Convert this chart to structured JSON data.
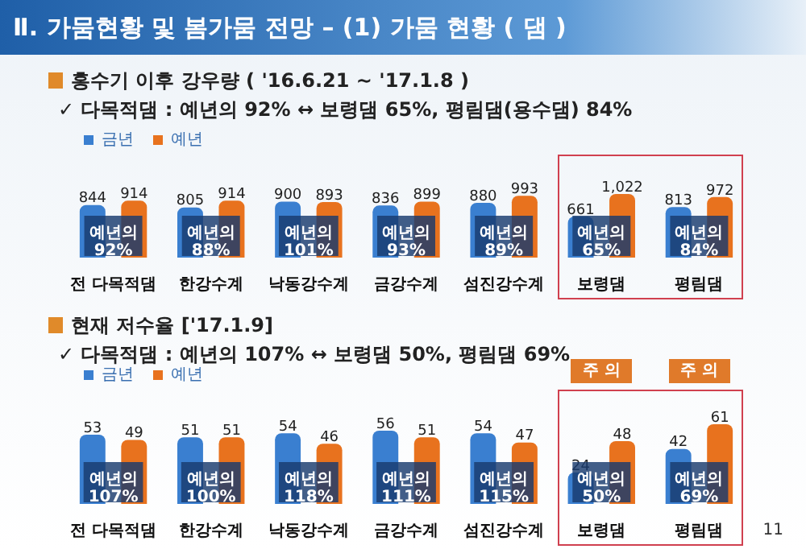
{
  "chart_data": [
    {
      "type": "bar",
      "title": "홍수기 이후 강우량 ( '16.6.21 ~ '17.1.8 )",
      "subtitle": "✓ 다목적댐 : 예년의 92% ↔ 보령댐 65%, 평림댐(용수댐) 84%",
      "categories": [
        "전 다목적댐",
        "한강수계",
        "낙동강수계",
        "금강수계",
        "섬진강수계",
        "보령댐",
        "평림댐"
      ],
      "series": [
        {
          "name": "금년",
          "color": "#3a7fd0",
          "values": [
            844,
            805,
            900,
            836,
            880,
            661,
            813
          ],
          "value_labels": [
            "844",
            "805",
            "900",
            "836",
            "880",
            "661",
            "813"
          ]
        },
        {
          "name": "예년",
          "color": "#e8721e",
          "values": [
            914,
            914,
            893,
            899,
            993,
            1022,
            972
          ],
          "value_labels": [
            "914",
            "914",
            "893",
            "899",
            "993",
            "1,022",
            "972"
          ]
        }
      ],
      "legend": "top left",
      "annotations": [
        "Ⅱ. 가뭄현황 및 봄가뭄 전망 – (1) 가뭄 현황 ( 댐 )",
        {
          "text": "예년의\n92%",
          "x": "전 다목적댐"
        },
        {
          "text": "예년의\n88%",
          "x": "한강수계"
        },
        {
          "text": "예년의\n101%",
          "x": "낙동강수계"
        },
        {
          "text": "예년의\n93%",
          "x": "금강수계"
        },
        {
          "text": "예년의\n89%",
          "x": "섬진강수계"
        },
        {
          "text": "예년의\n65%",
          "x": "보령댐"
        },
        {
          "text": "예년의\n84%",
          "x": "평림댐"
        }
      ]
    },
    {
      "type": "bar",
      "title": "현재 저수율 ['17.1.9]",
      "subtitle": "✓ 다목적댐 : 예년의 107% ↔ 보령댐 50%, 평림댐 69%",
      "categories": [
        "전 다목적댐",
        "한강수계",
        "낙동강수계",
        "금강수계",
        "섬진강수계",
        "보령댐",
        "평림댐"
      ],
      "series": [
        {
          "name": "금년",
          "color": "#3a7fd0",
          "values": [
            53,
            51,
            54,
            56,
            54,
            24,
            42
          ]
        },
        {
          "name": "예년",
          "color": "#e8721e",
          "values": [
            49,
            51,
            46,
            51,
            47,
            48,
            61
          ]
        }
      ],
      "data_labels": true,
      "legend": "top left",
      "annotations": [
        "11",
        {
          "text": "예년의\n107%",
          "x": "전 다목적댐"
        },
        {
          "text": "예년의\n100%",
          "x": "한강수계"
        },
        {
          "text": "예년의\n118%",
          "x": "낙동강수계"
        },
        {
          "text": "예년의\n111%",
          "x": "금강수계"
        },
        {
          "text": "예년의\n115%",
          "x": "섬진강수계"
        },
        {
          "text": "예년의\n50%",
          "x": "보령댐"
        },
        {
          "text": "예년의\n69%",
          "x": "평림댐"
        },
        "주 의",
        "주 의"
      ]
    }
  ]
}
